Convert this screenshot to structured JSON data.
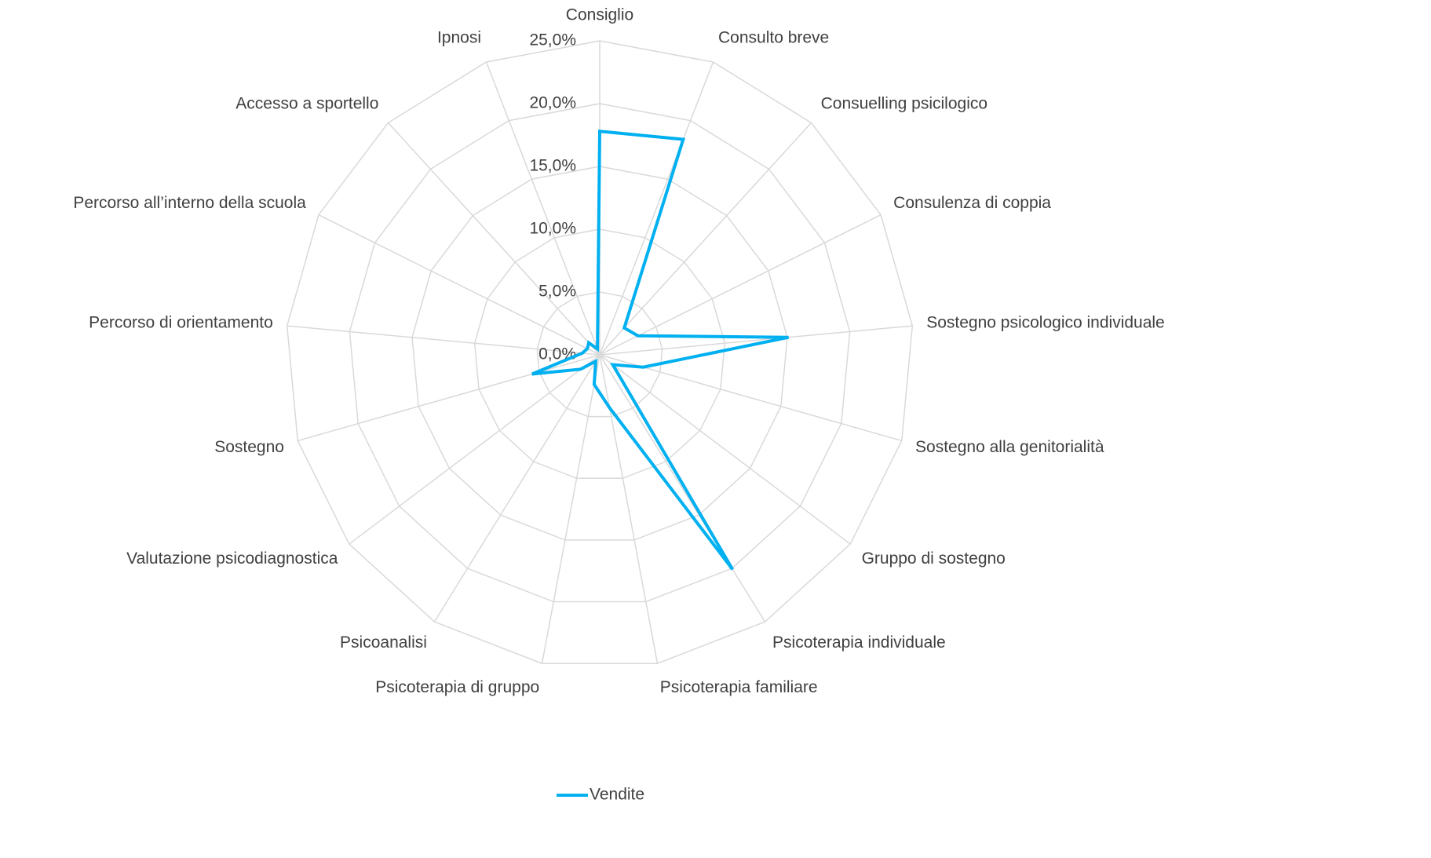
{
  "chart_data": {
    "type": "radar",
    "categories": [
      "Consiglio",
      "Consulto breve",
      "Consuelling psicilogico",
      "Consulenza di coppia",
      "Sostegno psicologico individuale",
      "Sostegno alla genitorialità",
      "Gruppo di sostegno",
      "Psicoterapia individuale",
      "Psicoterapia familiare",
      "Psicoterapia di gruppo",
      "Psicoanalisi",
      "Valutazione psicodiagnostica",
      "Sostegno",
      "Percorso di orientamento",
      "Percorso all’interno della scuola",
      "Accesso a sportello",
      "Ipnosi"
    ],
    "series": [
      {
        "name": "Vendite",
        "color": "#00b0f0",
        "values": [
          17.8,
          18.4,
          2.9,
          3.4,
          15.1,
          3.6,
          1.3,
          20.1,
          4.3,
          2.4,
          0.6,
          1.9,
          5.6,
          1.4,
          1.1,
          1.3,
          0.5
        ]
      }
    ],
    "ylim": [
      0,
      25
    ],
    "yticks": [
      {
        "value": 0,
        "label": "0,0%"
      },
      {
        "value": 5,
        "label": "5,0%"
      },
      {
        "value": 10,
        "label": "10,0%"
      },
      {
        "value": 15,
        "label": "15,0%"
      },
      {
        "value": 20,
        "label": "20,0%"
      },
      {
        "value": 25,
        "label": "25,0%"
      }
    ],
    "grid": true,
    "legend": "bottom"
  }
}
